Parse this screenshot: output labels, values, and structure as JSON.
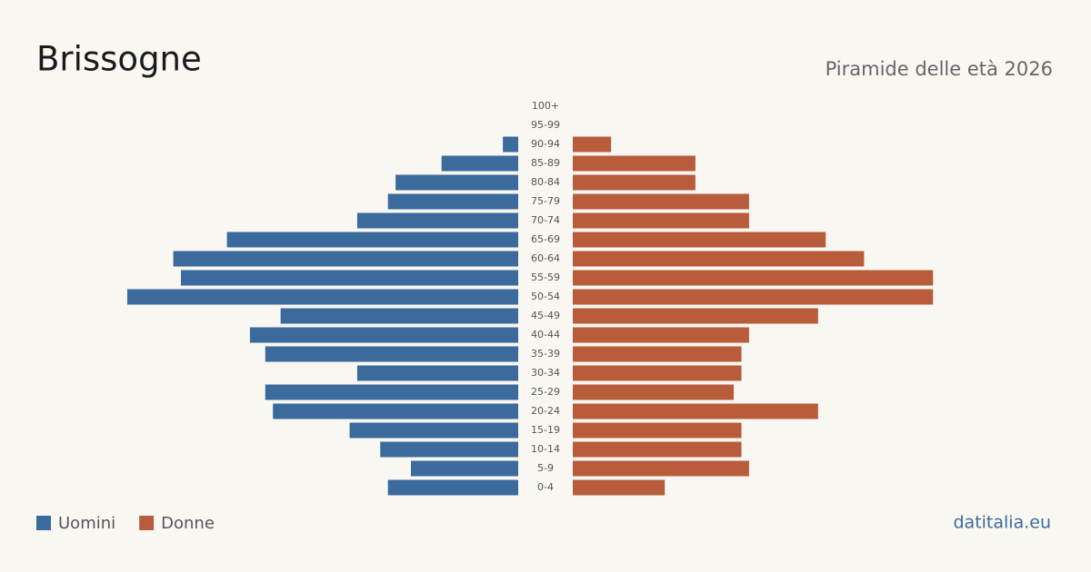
{
  "chart_data": {
    "type": "pyramid",
    "title": "Brissogne",
    "subtitle": "Piramide delle età 2026",
    "source": "datitalia.eu",
    "categories": [
      "100+",
      "95-99",
      "90-94",
      "85-89",
      "80-84",
      "75-79",
      "70-74",
      "65-69",
      "60-64",
      "55-59",
      "50-54",
      "45-49",
      "40-44",
      "35-39",
      "30-34",
      "25-29",
      "20-24",
      "15-19",
      "10-14",
      "5-9",
      "0-4"
    ],
    "series": [
      {
        "name": "Uomini",
        "color": "#3b6a9c",
        "values": [
          0,
          0,
          2,
          10,
          16,
          17,
          21,
          38,
          45,
          44,
          51,
          31,
          35,
          33,
          21,
          33,
          32,
          22,
          18,
          14,
          17
        ]
      },
      {
        "name": "Donne",
        "color": "#b85c3c",
        "values": [
          0,
          0,
          5,
          16,
          16,
          23,
          23,
          33,
          38,
          47,
          47,
          32,
          23,
          22,
          22,
          21,
          32,
          22,
          22,
          23,
          12
        ]
      }
    ]
  }
}
